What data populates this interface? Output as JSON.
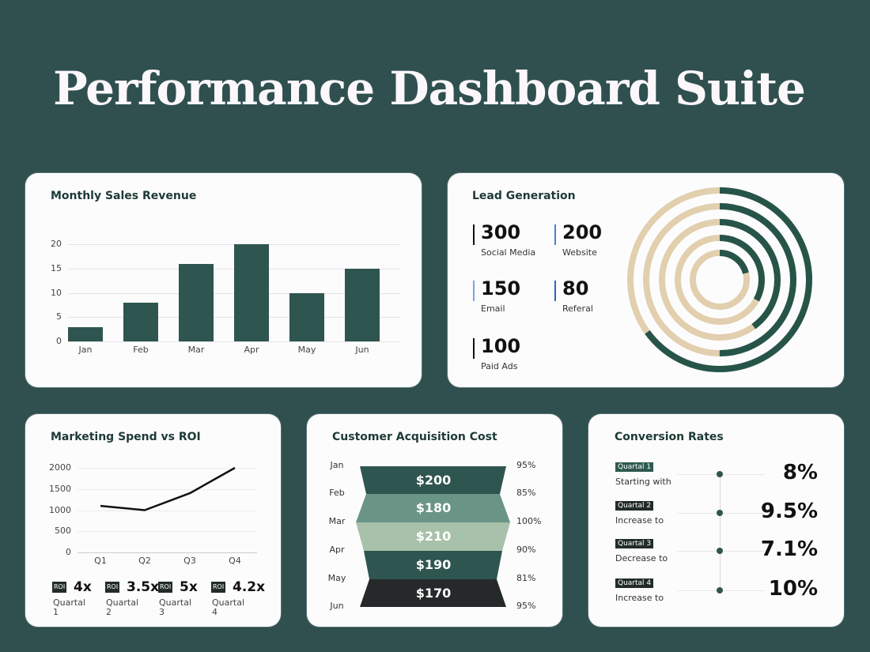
{
  "page": {
    "title": "Performance Dashboard Suite",
    "background": "#2f504f",
    "accent": "#2f5550"
  },
  "sales": {
    "title": "Monthly Sales Revenue",
    "yticks": [
      "20",
      "15",
      "10",
      "5",
      "0"
    ]
  },
  "lead": {
    "title": "Lead Generation",
    "stats": [
      {
        "value": "300",
        "label": "Social Media",
        "accent": "#111111"
      },
      {
        "value": "200",
        "label": "Website",
        "accent": "#4a7fd4"
      },
      {
        "value": "150",
        "label": "Email",
        "accent": "#7aa5e0"
      },
      {
        "value": "80",
        "label": "Referal",
        "accent": "#2d62c4"
      },
      {
        "value": "100",
        "label": "Paid Ads",
        "accent": "#111111"
      }
    ]
  },
  "marketing": {
    "title": "Marketing Spend vs ROI",
    "yticks": [
      "2000",
      "1500",
      "1000",
      "500",
      "0"
    ],
    "xticks": [
      "Q1",
      "Q2",
      "Q3",
      "Q4"
    ],
    "roi": [
      {
        "badge": "ROI",
        "value": "4x",
        "label": "Quartal 1"
      },
      {
        "badge": "ROI",
        "value": "3.5x",
        "label": "Quartal 2"
      },
      {
        "badge": "ROI",
        "value": "5x",
        "label": "Quartal 3"
      },
      {
        "badge": "ROI",
        "value": "4.2x",
        "label": "Quartal 4"
      }
    ]
  },
  "cac": {
    "title": "Customer Acquisition Cost",
    "months": [
      "Jan",
      "Feb",
      "Mar",
      "Apr",
      "May",
      "Jun"
    ],
    "percents": [
      "95%",
      "85%",
      "100%",
      "90%",
      "81%",
      "95%"
    ],
    "values": [
      "$200",
      "$180",
      "$210",
      "$190",
      "$170"
    ]
  },
  "conversion": {
    "title": "Conversion Rates",
    "rows": [
      {
        "badge": "Quartal 1",
        "desc": "Starting with",
        "value": "8%"
      },
      {
        "badge": "Quartal 2",
        "desc": "Increase to",
        "value": "9.5%"
      },
      {
        "badge": "Quartal 3",
        "desc": "Decrease to",
        "value": "7.1%"
      },
      {
        "badge": "Quartal 4",
        "desc": "Increase to",
        "value": "10%"
      }
    ]
  },
  "chart_data": [
    {
      "type": "bar",
      "title": "Monthly Sales Revenue",
      "categories": [
        "Jan",
        "Feb",
        "Mar",
        "Apr",
        "May",
        "Jun"
      ],
      "values": [
        3,
        8,
        16,
        20,
        10,
        15
      ],
      "xlabel": "",
      "ylabel": "",
      "ylim": [
        0,
        20
      ],
      "grid": true
    },
    {
      "type": "pie",
      "title": "Lead Generation",
      "categories": [
        "Social Media",
        "Website",
        "Email",
        "Referal",
        "Paid Ads"
      ],
      "values": [
        300,
        200,
        150,
        80,
        100
      ],
      "ring_fill_percent": [
        65,
        50,
        40,
        33,
        21
      ]
    },
    {
      "type": "line",
      "title": "Marketing Spend vs ROI",
      "categories": [
        "Q1",
        "Q2",
        "Q3",
        "Q4"
      ],
      "values": [
        1100,
        1000,
        1400,
        2000
      ],
      "roi": [
        "4x",
        "3.5x",
        "5x",
        "4.2x"
      ],
      "ylim": [
        0,
        2000
      ],
      "grid": true
    },
    {
      "type": "bar",
      "title": "Customer Acquisition Cost",
      "categories": [
        "Jan-Feb",
        "Feb-Mar",
        "Mar-Apr",
        "Apr-May",
        "May-Jun"
      ],
      "values": [
        200,
        180,
        210,
        190,
        170
      ],
      "boundary_percents": {
        "Jan": 95,
        "Feb": 85,
        "Mar": 100,
        "Apr": 90,
        "May": 81,
        "Jun": 95
      }
    },
    {
      "type": "table",
      "title": "Conversion Rates",
      "categories": [
        "Quartal 1",
        "Quartal 2",
        "Quartal 3",
        "Quartal 4"
      ],
      "values": [
        8,
        9.5,
        7.1,
        10
      ]
    }
  ]
}
